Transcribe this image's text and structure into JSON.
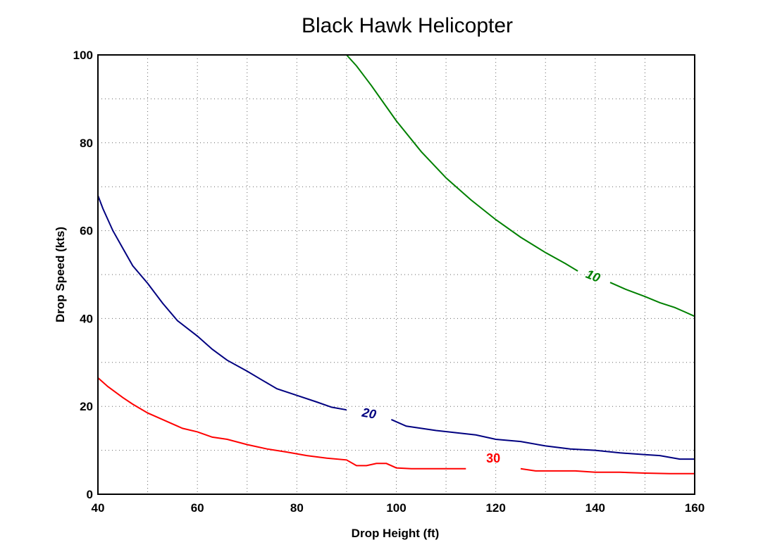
{
  "chart_data": {
    "type": "line",
    "title": "Black Hawk Helicopter",
    "xlabel": "Drop Height (ft)",
    "ylabel": "Drop Speed (kts)",
    "xlim": [
      40,
      160
    ],
    "ylim": [
      0,
      100
    ],
    "xticks": [
      40,
      60,
      80,
      100,
      120,
      140,
      160
    ],
    "yticks": [
      0,
      20,
      40,
      60,
      80,
      100
    ],
    "grid": true,
    "series": [
      {
        "name": "10",
        "color": "#008000",
        "segments": [
          [
            [
              90,
              100
            ],
            [
              92,
              97.5
            ],
            [
              95,
              93
            ],
            [
              100,
              85
            ],
            [
              105,
              78
            ],
            [
              110,
              72
            ],
            [
              115,
              67
            ],
            [
              120,
              62.5
            ],
            [
              125,
              58.5
            ],
            [
              130,
              55
            ],
            [
              134,
              52.5
            ],
            [
              136.5,
              50.8
            ]
          ],
          [
            [
              143,
              48.2
            ],
            [
              146,
              46.7
            ],
            [
              150,
              45
            ],
            [
              153,
              43.6
            ],
            [
              156,
              42.5
            ],
            [
              158,
              41.5
            ],
            [
              160,
              40.5
            ]
          ]
        ],
        "label": {
          "text": "10",
          "x": 139.5,
          "y": 49.5,
          "angle": 22
        }
      },
      {
        "name": "20",
        "color": "#000080",
        "segments": [
          [
            [
              40,
              68
            ],
            [
              41,
              65
            ],
            [
              43,
              60
            ],
            [
              45,
              56
            ],
            [
              47,
              52
            ],
            [
              50,
              48
            ],
            [
              53,
              43.5
            ],
            [
              56,
              39.5
            ],
            [
              60,
              36
            ],
            [
              63,
              33
            ],
            [
              66,
              30.5
            ],
            [
              70,
              28
            ],
            [
              73,
              26
            ],
            [
              76,
              24
            ],
            [
              80,
              22.5
            ],
            [
              84,
              21
            ],
            [
              87,
              19.8
            ],
            [
              90,
              19.2
            ]
          ],
          [
            [
              99,
              17
            ],
            [
              102,
              15.5
            ],
            [
              105,
              15
            ],
            [
              108,
              14.5
            ],
            [
              112,
              14
            ],
            [
              116,
              13.5
            ],
            [
              120,
              12.5
            ],
            [
              125,
              12
            ],
            [
              130,
              11
            ],
            [
              135,
              10.3
            ],
            [
              140,
              10
            ],
            [
              145,
              9.4
            ],
            [
              150,
              9
            ],
            [
              153,
              8.8
            ],
            [
              155,
              8.4
            ],
            [
              157,
              8
            ],
            [
              160,
              8
            ]
          ]
        ],
        "label": {
          "text": "20",
          "x": 94.5,
          "y": 18.2,
          "angle": 10
        }
      },
      {
        "name": "30",
        "color": "#ff0000",
        "segments": [
          [
            [
              40,
              26.5
            ],
            [
              42,
              24.5
            ],
            [
              45,
              22
            ],
            [
              47,
              20.5
            ],
            [
              50,
              18.5
            ],
            [
              53,
              17
            ],
            [
              57,
              15
            ],
            [
              60,
              14.2
            ],
            [
              63,
              13
            ],
            [
              66,
              12.5
            ],
            [
              70,
              11.3
            ],
            [
              74,
              10.3
            ],
            [
              78,
              9.6
            ],
            [
              82,
              8.8
            ],
            [
              86,
              8.2
            ],
            [
              90,
              7.8
            ],
            [
              92,
              6.5
            ],
            [
              94,
              6.5
            ],
            [
              96,
              7
            ],
            [
              98,
              7
            ],
            [
              100,
              6
            ],
            [
              103,
              5.8
            ],
            [
              107,
              5.8
            ],
            [
              111,
              5.8
            ],
            [
              114,
              5.8
            ]
          ],
          [
            [
              125,
              5.8
            ],
            [
              128,
              5.3
            ],
            [
              132,
              5.3
            ],
            [
              136,
              5.3
            ],
            [
              140,
              5
            ],
            [
              145,
              5
            ],
            [
              150,
              4.8
            ],
            [
              155,
              4.7
            ],
            [
              160,
              4.7
            ]
          ]
        ],
        "label": {
          "text": "30",
          "x": 119.5,
          "y": 8,
          "angle": 0
        }
      }
    ]
  }
}
